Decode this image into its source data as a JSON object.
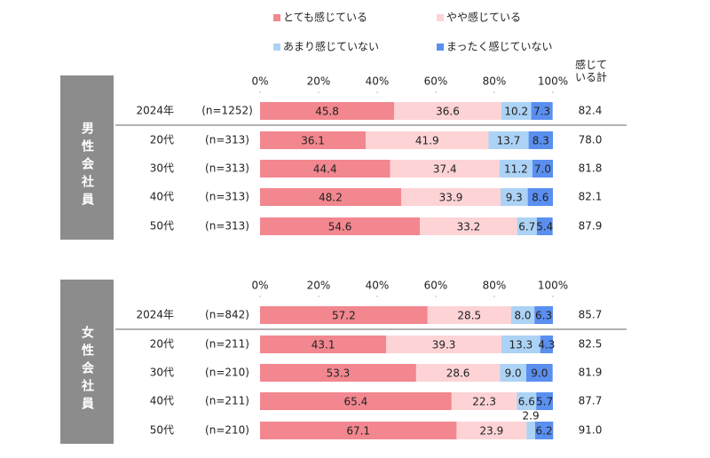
{
  "chart_data": [
    {
      "type": "bar",
      "group": "男性会社員",
      "total_header": "感じている計",
      "categories": [
        "2024年",
        "20代",
        "30代",
        "40代",
        "50代"
      ],
      "n_labels": [
        "(n=1252)",
        "(n=313)",
        "(n=313)",
        "(n=313)",
        "(n=313)"
      ],
      "xlim": [
        0,
        100
      ],
      "xticks": [
        {
          "value": 0,
          "label": "0%"
        },
        {
          "value": 20,
          "label": "20%"
        },
        {
          "value": 40,
          "label": "40%"
        },
        {
          "value": 60,
          "label": "60%"
        },
        {
          "value": 80,
          "label": "80%"
        },
        {
          "value": 100,
          "label": "100%"
        }
      ],
      "series": [
        {
          "name": "とても感じている",
          "color": "#f2878f",
          "values": [
            45.8,
            36.1,
            44.4,
            48.2,
            54.6
          ]
        },
        {
          "name": "やや感じている",
          "color": "#fdd3d6",
          "values": [
            36.6,
            41.9,
            37.4,
            33.9,
            33.2
          ]
        },
        {
          "name": "あまり感じていない",
          "color": "#acd3f6",
          "values": [
            10.2,
            13.7,
            11.2,
            9.3,
            6.7
          ]
        },
        {
          "name": "まったく感じていない",
          "color": "#5a8ff0",
          "values": [
            7.3,
            8.3,
            7.0,
            8.6,
            5.4
          ],
          "value_labels": [
            "7.3",
            "8.3",
            "7.0",
            "8.6",
            "5.4"
          ]
        }
      ],
      "totals": [
        82.4,
        78.0,
        81.8,
        82.1,
        87.9
      ],
      "total_labels": [
        "82.4",
        "78.0",
        "81.8",
        "82.1",
        "87.9"
      ]
    },
    {
      "type": "bar",
      "group": "女性会社員",
      "categories": [
        "2024年",
        "20代",
        "30代",
        "40代",
        "50代"
      ],
      "n_labels": [
        "(n=842)",
        "(n=211)",
        "(n=210)",
        "(n=211)",
        "(n=210)"
      ],
      "xlim": [
        0,
        100
      ],
      "xticks": [
        {
          "value": 0,
          "label": "0%"
        },
        {
          "value": 20,
          "label": "20%"
        },
        {
          "value": 40,
          "label": "40%"
        },
        {
          "value": 60,
          "label": "60%"
        },
        {
          "value": 80,
          "label": "80%"
        },
        {
          "value": 100,
          "label": "100%"
        }
      ],
      "series": [
        {
          "color": "#f2878f",
          "values": [
            57.2,
            43.1,
            53.3,
            65.4,
            67.1
          ]
        },
        {
          "color": "#fdd3d6",
          "values": [
            28.5,
            39.3,
            28.6,
            22.3,
            23.9
          ]
        },
        {
          "color": "#acd3f6",
          "values": [
            8.0,
            13.3,
            9.0,
            6.6,
            2.9
          ],
          "value_labels": [
            "8.0",
            "13.3",
            "9.0",
            "6.6",
            "2.9"
          ]
        },
        {
          "color": "#5a8ff0",
          "values": [
            6.3,
            4.3,
            9.0,
            5.7,
            6.2
          ],
          "value_labels": [
            "6.3",
            "4.3",
            "9.0",
            "5.7",
            "6.2"
          ]
        }
      ],
      "totals": [
        85.7,
        82.5,
        81.9,
        87.7,
        91.0
      ],
      "total_labels": [
        "85.7",
        "82.5",
        "81.9",
        "87.7",
        "91.0"
      ]
    }
  ]
}
